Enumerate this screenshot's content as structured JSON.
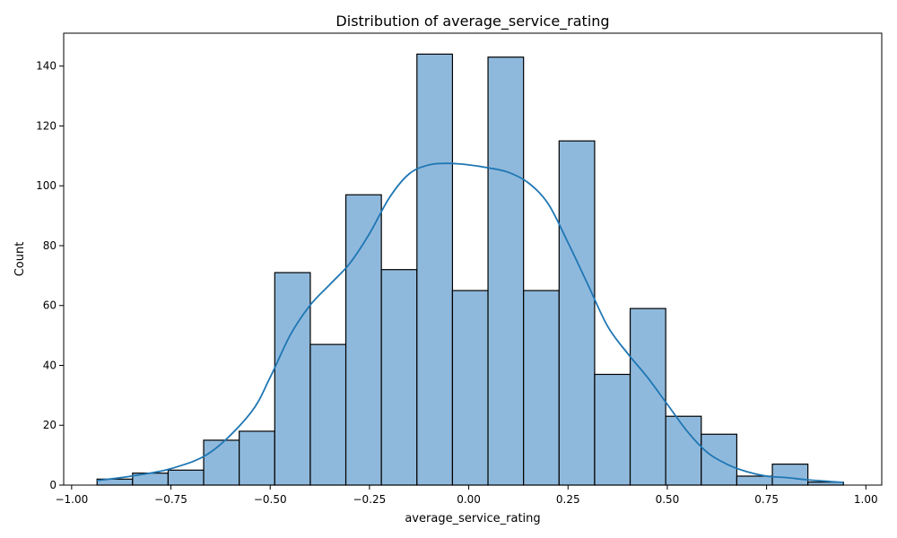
{
  "chart_data": {
    "type": "bar",
    "title": "Distribution of average_service_rating",
    "xlabel": "average_service_rating",
    "ylabel": "Count",
    "xlim": [
      -1.02,
      1.04
    ],
    "ylim": [
      0,
      151
    ],
    "x_ticks": [
      -1.0,
      -0.75,
      -0.5,
      -0.25,
      0.0,
      0.25,
      0.5,
      0.75,
      1.0
    ],
    "x_tick_labels": [
      "−1.00",
      "−0.75",
      "−0.50",
      "−0.25",
      "0.00",
      "0.25",
      "0.50",
      "0.75",
      "1.00"
    ],
    "y_ticks": [
      0,
      20,
      40,
      60,
      80,
      100,
      120,
      140
    ],
    "y_tick_labels": [
      "0",
      "20",
      "40",
      "60",
      "80",
      "100",
      "120",
      "140"
    ],
    "bin_edges": [
      -0.936,
      -0.8465,
      -0.757,
      -0.6675,
      -0.578,
      -0.4885,
      -0.399,
      -0.3095,
      -0.22,
      -0.1305,
      -0.041,
      0.0485,
      0.138,
      0.2275,
      0.317,
      0.4065,
      0.496,
      0.5855,
      0.675,
      0.7645,
      0.854,
      0.9435
    ],
    "counts": [
      2,
      4,
      5,
      15,
      18,
      71,
      47,
      97,
      72,
      144,
      65,
      143,
      65,
      115,
      37,
      59,
      23,
      17,
      3,
      7,
      1
    ],
    "kde": {
      "x": [
        -0.936,
        -0.85,
        -0.75,
        -0.65,
        -0.55,
        -0.5,
        -0.45,
        -0.4,
        -0.35,
        -0.3,
        -0.25,
        -0.2,
        -0.15,
        -0.1,
        -0.05,
        0.0,
        0.05,
        0.1,
        0.15,
        0.2,
        0.25,
        0.3,
        0.35,
        0.4,
        0.45,
        0.5,
        0.55,
        0.6,
        0.65,
        0.7,
        0.75,
        0.8,
        0.85,
        0.9,
        0.9435
      ],
      "y": [
        1.5,
        3,
        5.5,
        11,
        24,
        36,
        50,
        60,
        67,
        74,
        84,
        96,
        104,
        107,
        107.5,
        107,
        106,
        104.5,
        101,
        94,
        81,
        67,
        53,
        44,
        36,
        27,
        18,
        11,
        7,
        4.5,
        3,
        2.5,
        1.8,
        1.3,
        0.9
      ]
    },
    "bar_fill": "#8fb9dc",
    "bar_edge": "#000000",
    "kde_color": "#1f77b4",
    "grid": false,
    "legend": "none"
  }
}
